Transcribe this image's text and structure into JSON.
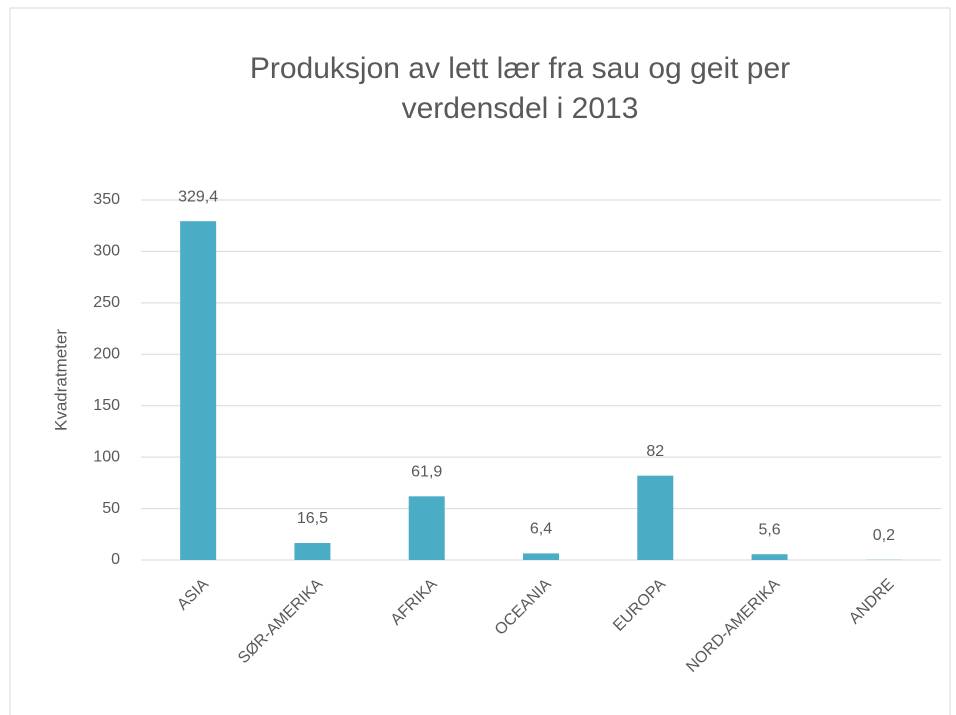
{
  "chart_data": {
    "type": "bar",
    "title": [
      "Produksjon av lett lær fra sau og geit per",
      "verdensdel i 2013"
    ],
    "y_label": "Kvadratmeter",
    "categories": [
      "ASIA",
      "SØR-AMERIKA",
      "AFRIKA",
      "OCEANIA",
      "EUROPA",
      "NORD-AMERIKA",
      "ANDRE"
    ],
    "values": [
      329.4,
      16.5,
      61.9,
      6.4,
      82,
      5.6,
      0.2
    ],
    "value_labels": [
      "329,4",
      "16,5",
      "61,9",
      "6,4",
      "82",
      "5,6",
      "0,2"
    ],
    "color": "#4bacc6",
    "ylim": [
      0,
      350
    ],
    "yticks": [
      0,
      50,
      100,
      150,
      200,
      250,
      300,
      350
    ],
    "grid": true
  }
}
